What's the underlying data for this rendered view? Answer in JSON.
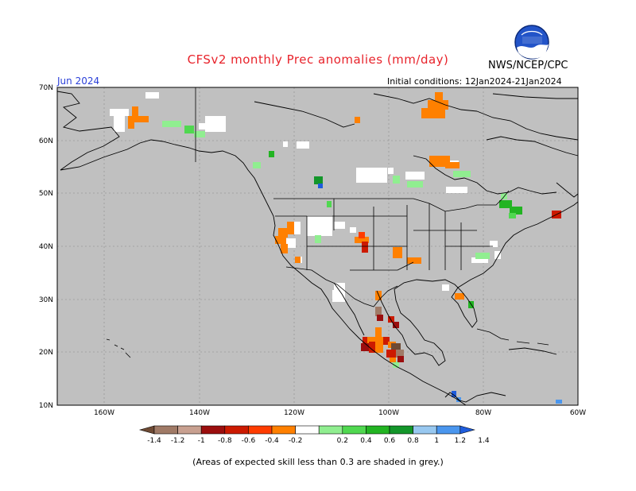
{
  "header": {
    "title": "CFSv2 monthly Prec anomalies (mm/day)",
    "org": "NWS/NCEP/CPC",
    "month": "Jun 2024",
    "initial_conditions": "Initial conditions: 12Jan2024-21Jan2024",
    "logo_text": "NOAA"
  },
  "map": {
    "lat_labels": [
      "70N",
      "60N",
      "50N",
      "40N",
      "30N",
      "20N",
      "10N"
    ],
    "lon_labels": [
      "160W",
      "140W",
      "120W",
      "100W",
      "80W",
      "60W"
    ],
    "land_color": "#c0c0c0",
    "ocean_color": "#c0c0c0"
  },
  "colorbar": {
    "labels": [
      "-1.4",
      "-1.2",
      "-1",
      "-0.8",
      "-0.6",
      "-0.4",
      "-0.2",
      "0.2",
      "0.4",
      "0.6",
      "0.8",
      "1",
      "1.2",
      "1.4"
    ],
    "colors": [
      "#6e4a34",
      "#a07a66",
      "#c8a090",
      "#9b0e0e",
      "#cc1a00",
      "#ff3c00",
      "#ff8000",
      "#ffffff",
      "#90ee90",
      "#50d850",
      "#22b422",
      "#13962a",
      "#98c8f0",
      "#4a96ee",
      "#1e5cdc"
    ]
  },
  "footnote": "(Areas of expected skill less than 0.3 are shaded in grey.)"
}
